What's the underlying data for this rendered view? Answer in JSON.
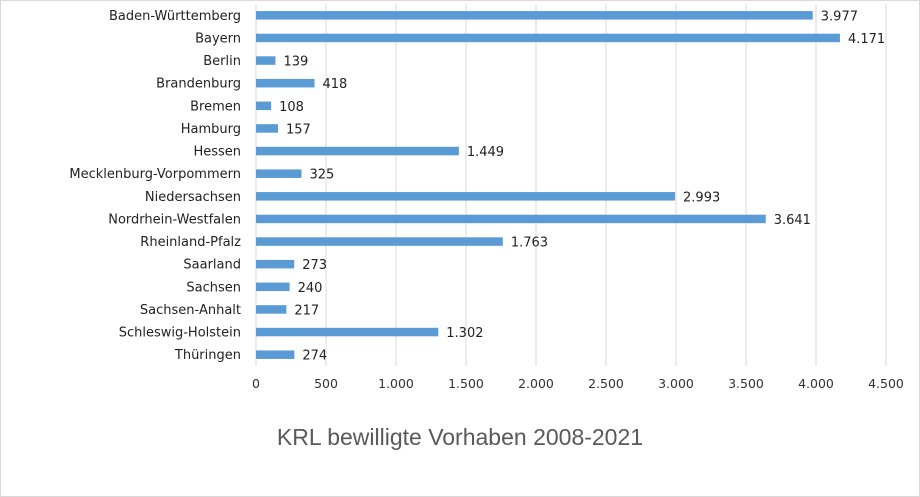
{
  "chart_data": {
    "type": "bar",
    "orientation": "horizontal",
    "title": "KRL bewilligte Vorhaben 2008-2021",
    "categories": [
      "Baden-Württemberg",
      "Bayern",
      "Berlin",
      "Brandenburg",
      "Bremen",
      "Hamburg",
      "Hessen",
      "Mecklenburg-Vorpommern",
      "Niedersachsen",
      "Nordrhein-Westfalen",
      "Rheinland-Pfalz",
      "Saarland",
      "Sachsen",
      "Sachsen-Anhalt",
      "Schleswig-Holstein",
      "Thüringen"
    ],
    "values": [
      3977,
      4171,
      139,
      418,
      108,
      157,
      1449,
      325,
      2993,
      3641,
      1763,
      273,
      240,
      217,
      1302,
      274
    ],
    "data_labels": [
      "3.977",
      "4.171",
      "139",
      "418",
      "108",
      "157",
      "1.449",
      "325",
      "2.993",
      "3.641",
      "1.763",
      "273",
      "240",
      "217",
      "1.302",
      "274"
    ],
    "xlim": [
      0,
      4500
    ],
    "x_ticks": [
      0,
      500,
      1000,
      1500,
      2000,
      2500,
      3000,
      3500,
      4000,
      4500
    ],
    "x_tick_labels": [
      "0",
      "500",
      "1.000",
      "1.500",
      "2.000",
      "2.500",
      "3.000",
      "3.500",
      "4.000",
      "4.500"
    ],
    "xlabel": "",
    "ylabel": "",
    "grid": "vertical",
    "legend": "none",
    "bar_color": "#5b9bd5",
    "grid_color": "#d9d9d9"
  }
}
